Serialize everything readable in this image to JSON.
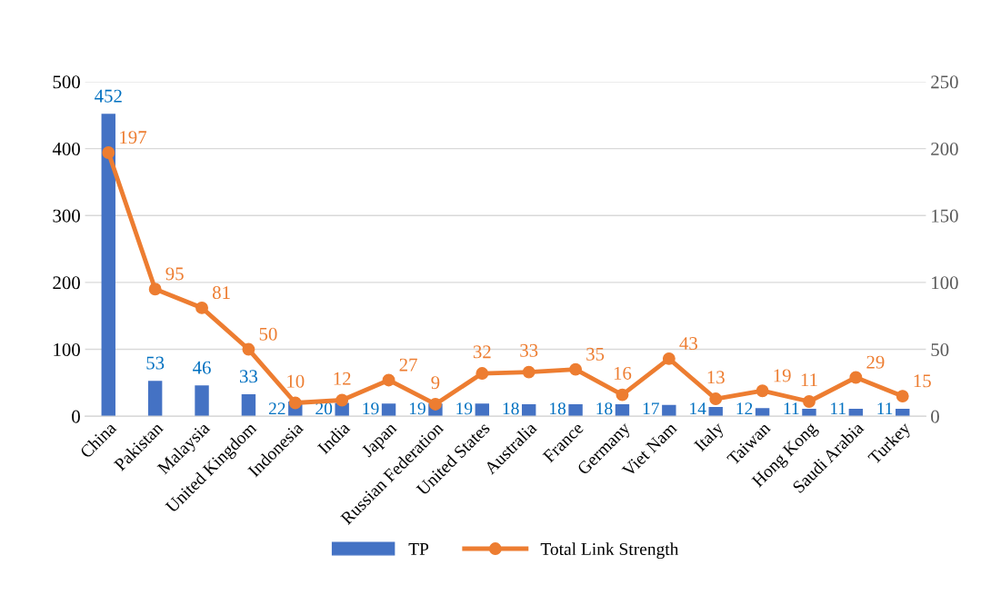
{
  "chart_data": {
    "type": "bar",
    "categories": [
      "China",
      "Pakistan",
      "Malaysia",
      "United Kingdom",
      "Indonesia",
      "India",
      "Japan",
      "Russian Federation",
      "United States",
      "Australia",
      "France",
      "Germany",
      "Viet Nam",
      "Italy",
      "Taiwan",
      "Hong Kong",
      "Saudi Arabia",
      "Turkey"
    ],
    "series": [
      {
        "name": "TP",
        "type": "bar",
        "color": "#4472c4",
        "values": [
          452,
          53,
          46,
          33,
          22,
          20,
          19,
          19,
          19,
          18,
          18,
          18,
          17,
          14,
          12,
          11,
          11,
          11
        ]
      },
      {
        "name": "Total Link Strength",
        "type": "line",
        "axis": "y2",
        "color": "#ed7d31",
        "marker": "circle",
        "values": [
          197,
          95,
          81,
          50,
          10,
          12,
          27,
          9,
          32,
          33,
          35,
          16,
          43,
          13,
          19,
          11,
          29,
          15
        ]
      }
    ],
    "ylim": [
      0,
      500
    ],
    "yticks": [
      0,
      100,
      200,
      300,
      400,
      500
    ],
    "y2lim": [
      0,
      250
    ],
    "y2ticks": [
      0,
      50,
      100,
      150,
      200,
      250
    ],
    "grid": "y",
    "legend": "bottom",
    "data_labels": true
  }
}
